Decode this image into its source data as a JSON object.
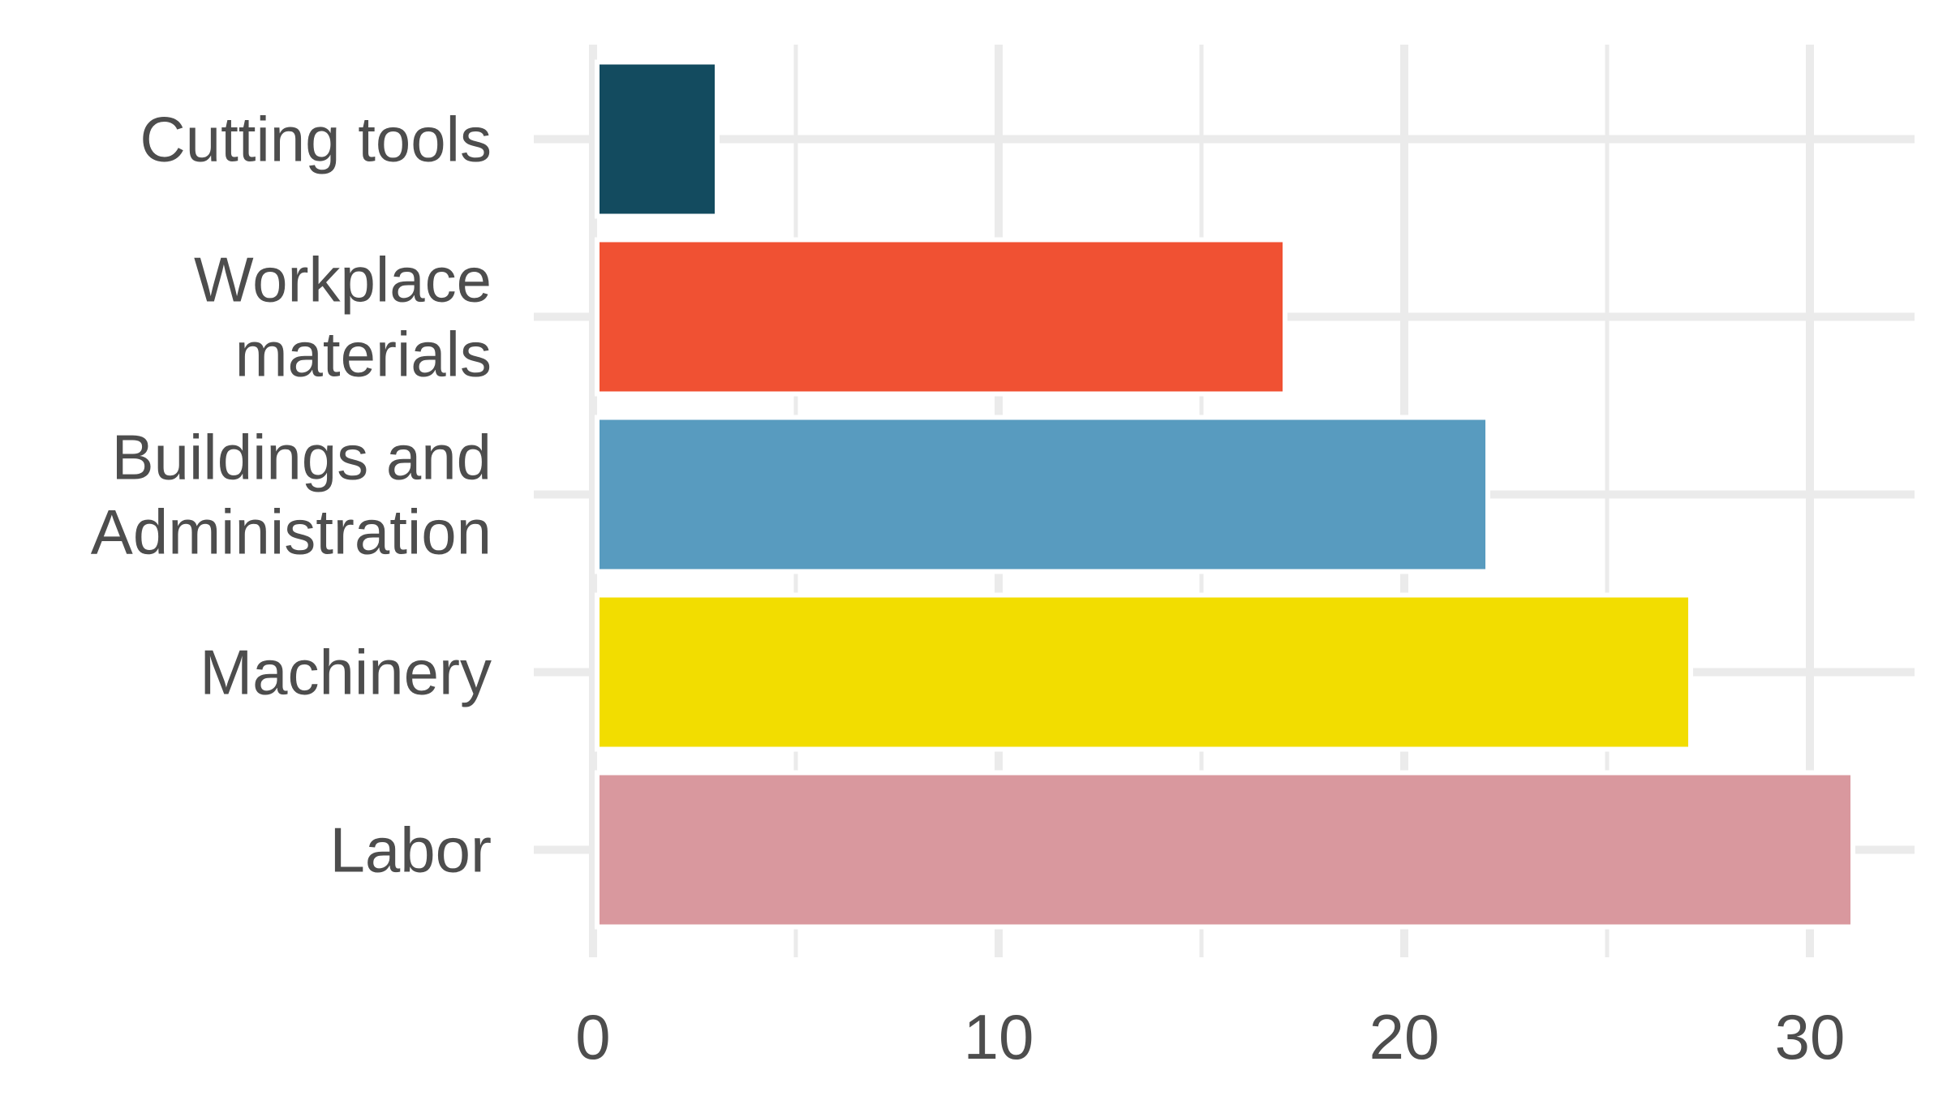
{
  "chart_data": {
    "type": "bar",
    "orientation": "horizontal",
    "categories": [
      [
        "Cutting tools"
      ],
      [
        "Workplace",
        "materials"
      ],
      [
        "Buildings and",
        "Administration"
      ],
      [
        "Machinery"
      ],
      [
        "Labor"
      ]
    ],
    "values": [
      3,
      17,
      22,
      27,
      31
    ],
    "colors": [
      "#134b5f",
      "#f05133",
      "#589bbf",
      "#f2dd00",
      "#d9989e"
    ],
    "xlim": [
      0,
      32
    ],
    "xticks": [
      0,
      10,
      20,
      30
    ],
    "xtick_labels": [
      "0",
      "10",
      "20",
      "30"
    ],
    "minor_xticks": [
      5,
      15,
      25
    ],
    "grid": true,
    "legend": "none",
    "title": "",
    "xlabel": "",
    "ylabel": ""
  }
}
